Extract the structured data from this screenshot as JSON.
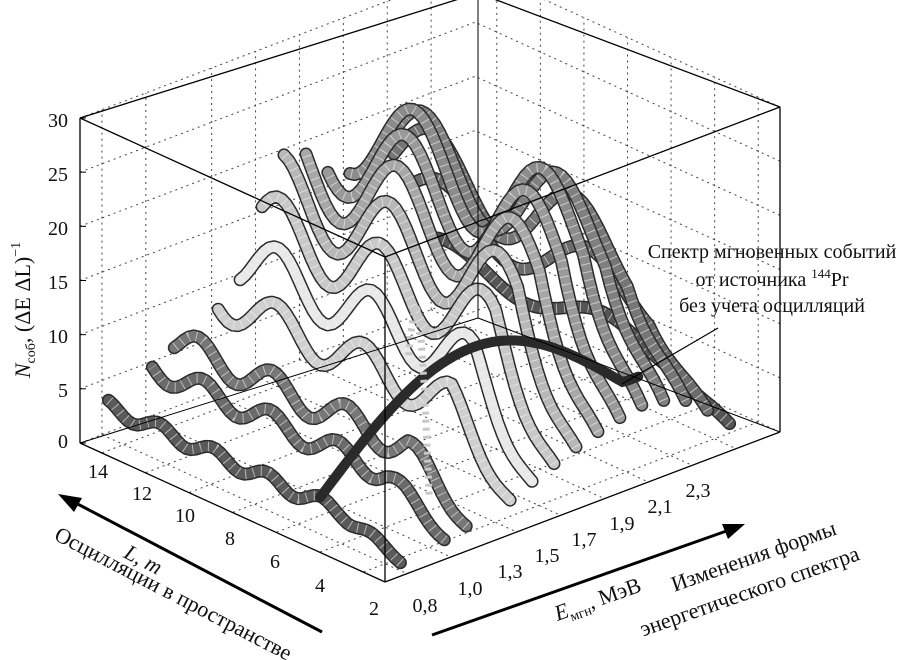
{
  "chart_data": {
    "type": "3d-ribbon",
    "ylabel": {
      "main": "N",
      "sub": "соб",
      "rest": ", (ΔE ΔL)",
      "sup": "−1"
    },
    "xlabel": {
      "main": "E",
      "sub": "мгн",
      "rest": ", МэВ"
    },
    "zlabel": "L, m",
    "y_ticks": [
      "0",
      "5",
      "10",
      "15",
      "20",
      "25",
      "30"
    ],
    "x_ticks": [
      "0,8",
      "1,0",
      "1,3",
      "1,5",
      "1,7",
      "1,9",
      "2,1",
      "2,3"
    ],
    "z_ticks": [
      "2",
      "4",
      "6",
      "8",
      "10",
      "12",
      "14"
    ],
    "ylim": [
      0,
      30
    ],
    "xlim": [
      0.7,
      2.5
    ],
    "zlim": [
      1,
      15
    ],
    "grid": true,
    "annotations": {
      "spectrum_line1": "Спектр мгновенных событий",
      "spectrum_line2_prefix": "от источника ",
      "spectrum_isotope_mass": "144",
      "spectrum_isotope_symbol": "Pr",
      "spectrum_line3": "без учета осцилляций",
      "osc_space": "Осцилляции в пространстве",
      "energy_change_line1": "Изменения формы",
      "energy_change_line2": "энергетического спектра"
    },
    "series": [
      {
        "type": "energy-slice",
        "E": 0.8,
        "peak": 3.5
      },
      {
        "type": "energy-slice",
        "E": 1.0,
        "peak": 6.0
      },
      {
        "type": "energy-slice",
        "E": 1.1,
        "peak": 8.0
      },
      {
        "type": "energy-slice",
        "E": 1.3,
        "peak": 11.0
      },
      {
        "type": "energy-slice",
        "E": 1.4,
        "peak": 14.5
      },
      {
        "type": "energy-slice",
        "E": 1.5,
        "peak": 17.5
      },
      {
        "type": "energy-slice",
        "E": 1.6,
        "peak": 20.0
      },
      {
        "type": "energy-slice",
        "E": 1.7,
        "peak": 22.0
      },
      {
        "type": "energy-slice",
        "E": 1.8,
        "peak": 23.5
      },
      {
        "type": "energy-slice",
        "E": 1.9,
        "peak": 24.5
      },
      {
        "type": "energy-slice",
        "E": 2.0,
        "peak": 23.0
      },
      {
        "type": "energy-slice",
        "E": 2.1,
        "peak": 20.0
      },
      {
        "type": "energy-slice",
        "E": 2.2,
        "peak": 14.0
      },
      {
        "type": "energy-slice",
        "E": 2.3,
        "peak": 7.0
      }
    ],
    "reference_spectrum": {
      "name": "no oscillation",
      "L": 7,
      "peak": 8.5
    }
  }
}
